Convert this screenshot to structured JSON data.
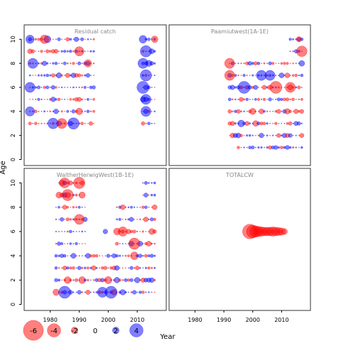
{
  "chart_data": {
    "type": "scatter",
    "subtype": "bubble-residuals",
    "xlabel": "Year",
    "ylabel": "Age",
    "xlim": [
      1971,
      2020
    ],
    "ylim": [
      -0.5,
      11.2
    ],
    "x_ticks": [
      1980,
      1990,
      2000,
      2010
    ],
    "y_ticks": [
      0,
      2,
      4,
      6,
      8,
      10
    ],
    "colors": {
      "positive": "#0000ff",
      "negative": "#ff0000"
    },
    "legend": {
      "placement": "bottom-left",
      "values": [
        -6,
        -4,
        -2,
        0,
        2,
        4
      ],
      "labels": [
        "-6",
        "-4",
        "-2",
        "0",
        "2",
        "4"
      ]
    },
    "panels": [
      {
        "title": "Residual catch",
        "x_labels_shown": false,
        "y_labels_shown": true,
        "groups": [
          {
            "ages": [
              3,
              4,
              5,
              6,
              7,
              8,
              9,
              10
            ],
            "from": 1973,
            "to": 1995,
            "seed": 11,
            "bias": 0.0,
            "amp": 2.2
          },
          {
            "ages": [
              3,
              4,
              5,
              6,
              7,
              8,
              9,
              10
            ],
            "from": 2012,
            "to": 2016,
            "seed": 12,
            "bias": 0.6,
            "amp": 2.6
          }
        ],
        "points": [
          {
            "x": 1973,
            "y": 10,
            "r": 2.5
          },
          {
            "x": 1978,
            "y": 10,
            "r": -2.6
          },
          {
            "x": 1974,
            "y": 8,
            "r": 3.0
          },
          {
            "x": 1973,
            "y": 6,
            "r": 3.0
          },
          {
            "x": 1973,
            "y": 4,
            "r": 2.8
          },
          {
            "x": 1981,
            "y": 3,
            "r": 3.2
          },
          {
            "x": 1984,
            "y": 3,
            "r": -3.0
          },
          {
            "x": 1988,
            "y": 3,
            "r": 3.4
          },
          {
            "x": 1990,
            "y": 9,
            "r": -2.8
          },
          {
            "x": 1993,
            "y": 8,
            "r": -2.2
          },
          {
            "x": 2013,
            "y": 9,
            "r": 3.4
          },
          {
            "x": 2012,
            "y": 8,
            "r": 3.0
          },
          {
            "x": 2013,
            "y": 7,
            "r": 3.4
          },
          {
            "x": 2012,
            "y": 6,
            "r": 3.6
          },
          {
            "x": 2013,
            "y": 5,
            "r": 3.0
          },
          {
            "x": 2013,
            "y": 4,
            "r": 3.0
          },
          {
            "x": 2016,
            "y": 10,
            "r": -2.0
          }
        ]
      },
      {
        "title": "Paamiutwest(1A-1E)",
        "x_labels_shown": false,
        "y_labels_shown": false,
        "groups": [
          {
            "ages": [
              1
            ],
            "from": 1995,
            "to": 2017,
            "seed": 21,
            "bias": 0.8,
            "amp": 2.2
          },
          {
            "ages": [
              2,
              3,
              4,
              5,
              6,
              7
            ],
            "from": 1992,
            "to": 2017,
            "seed": 22,
            "bias": 0.0,
            "amp": 2.4
          },
          {
            "ages": [
              8
            ],
            "from": 1992,
            "to": 2017,
            "seed": 23,
            "bias": 0.3,
            "amp": 2.2
          },
          {
            "ages": [
              9,
              10
            ],
            "from": 2013,
            "to": 2017,
            "seed": 24,
            "bias": 0.8,
            "amp": 2.0
          }
        ],
        "points": [
          {
            "x": 1992,
            "y": 8,
            "r": -3.0
          },
          {
            "x": 1992,
            "y": 7,
            "r": -3.0
          },
          {
            "x": 1997,
            "y": 6,
            "r": 3.6
          },
          {
            "x": 2008,
            "y": 6,
            "r": -3.6
          },
          {
            "x": 2017,
            "y": 9,
            "r": -3.2
          },
          {
            "x": 2013,
            "y": 6,
            "r": -3.0
          },
          {
            "x": 2003,
            "y": 7,
            "r": 3.0
          },
          {
            "x": 2006,
            "y": 7,
            "r": 3.0
          },
          {
            "x": 2016,
            "y": 10,
            "r": -1.6
          }
        ]
      },
      {
        "title": "WaltherHerwigWest(1B-1E)",
        "x_labels_shown": true,
        "y_labels_shown": true,
        "groups": [
          {
            "ages": [
              1,
              2,
              3,
              4
            ],
            "from": 1982,
            "to": 2016,
            "seed": 31,
            "bias": 0.0,
            "amp": 2.6
          },
          {
            "ages": [
              5,
              6,
              7,
              8
            ],
            "from": 1982,
            "to": 1992,
            "seed": 32,
            "bias": 0.2,
            "amp": 2.4
          },
          {
            "ages": [
              5,
              6,
              7,
              8
            ],
            "from": 2003,
            "to": 2016,
            "seed": 33,
            "bias": -0.1,
            "amp": 2.4
          },
          {
            "ages": [
              9,
              10
            ],
            "from": 1983,
            "to": 1991,
            "seed": 34,
            "bias": -0.7,
            "amp": 2.6
          },
          {
            "ages": [
              9,
              10
            ],
            "from": 2012,
            "to": 2016,
            "seed": 35,
            "bias": 0.0,
            "amp": 2.0
          }
        ],
        "points": [
          {
            "x": 1985,
            "y": 10,
            "r": -3.0
          },
          {
            "x": 1990,
            "y": 10,
            "r": -3.4
          },
          {
            "x": 1986,
            "y": 9,
            "r": -3.4
          },
          {
            "x": 1985,
            "y": 1,
            "r": 3.6
          },
          {
            "x": 1990,
            "y": 7,
            "r": -3.0
          },
          {
            "x": 2009,
            "y": 5,
            "r": -3.4
          },
          {
            "x": 2005,
            "y": 6,
            "r": -2.8
          },
          {
            "x": 2001,
            "y": 1,
            "r": 3.6
          },
          {
            "x": 1998,
            "y": 1,
            "r": 3.0
          },
          {
            "x": 1999,
            "y": 6,
            "r": 1.4
          }
        ]
      },
      {
        "title": "TOTALCW",
        "x_labels_shown": true,
        "y_labels_shown": false,
        "groups": [],
        "points": [
          {
            "x": 1999,
            "y": 6,
            "r": -4.4
          },
          {
            "x": 2000,
            "y": 6,
            "r": -3.8
          },
          {
            "x": 2001,
            "y": 6,
            "r": -3.4
          },
          {
            "x": 2002,
            "y": 6,
            "r": -3.0
          },
          {
            "x": 2003,
            "y": 6,
            "r": -2.8
          },
          {
            "x": 2004,
            "y": 6,
            "r": -2.6
          },
          {
            "x": 2005,
            "y": 6,
            "r": -2.6
          },
          {
            "x": 2006,
            "y": 6,
            "r": -2.6
          },
          {
            "x": 2007,
            "y": 6,
            "r": -2.8
          },
          {
            "x": 2008,
            "y": 6,
            "r": -2.6
          },
          {
            "x": 2009,
            "y": 6,
            "r": -2.4
          },
          {
            "x": 2010,
            "y": 6,
            "r": -2.2
          },
          {
            "x": 2011,
            "y": 6,
            "r": -1.8
          }
        ]
      }
    ]
  }
}
